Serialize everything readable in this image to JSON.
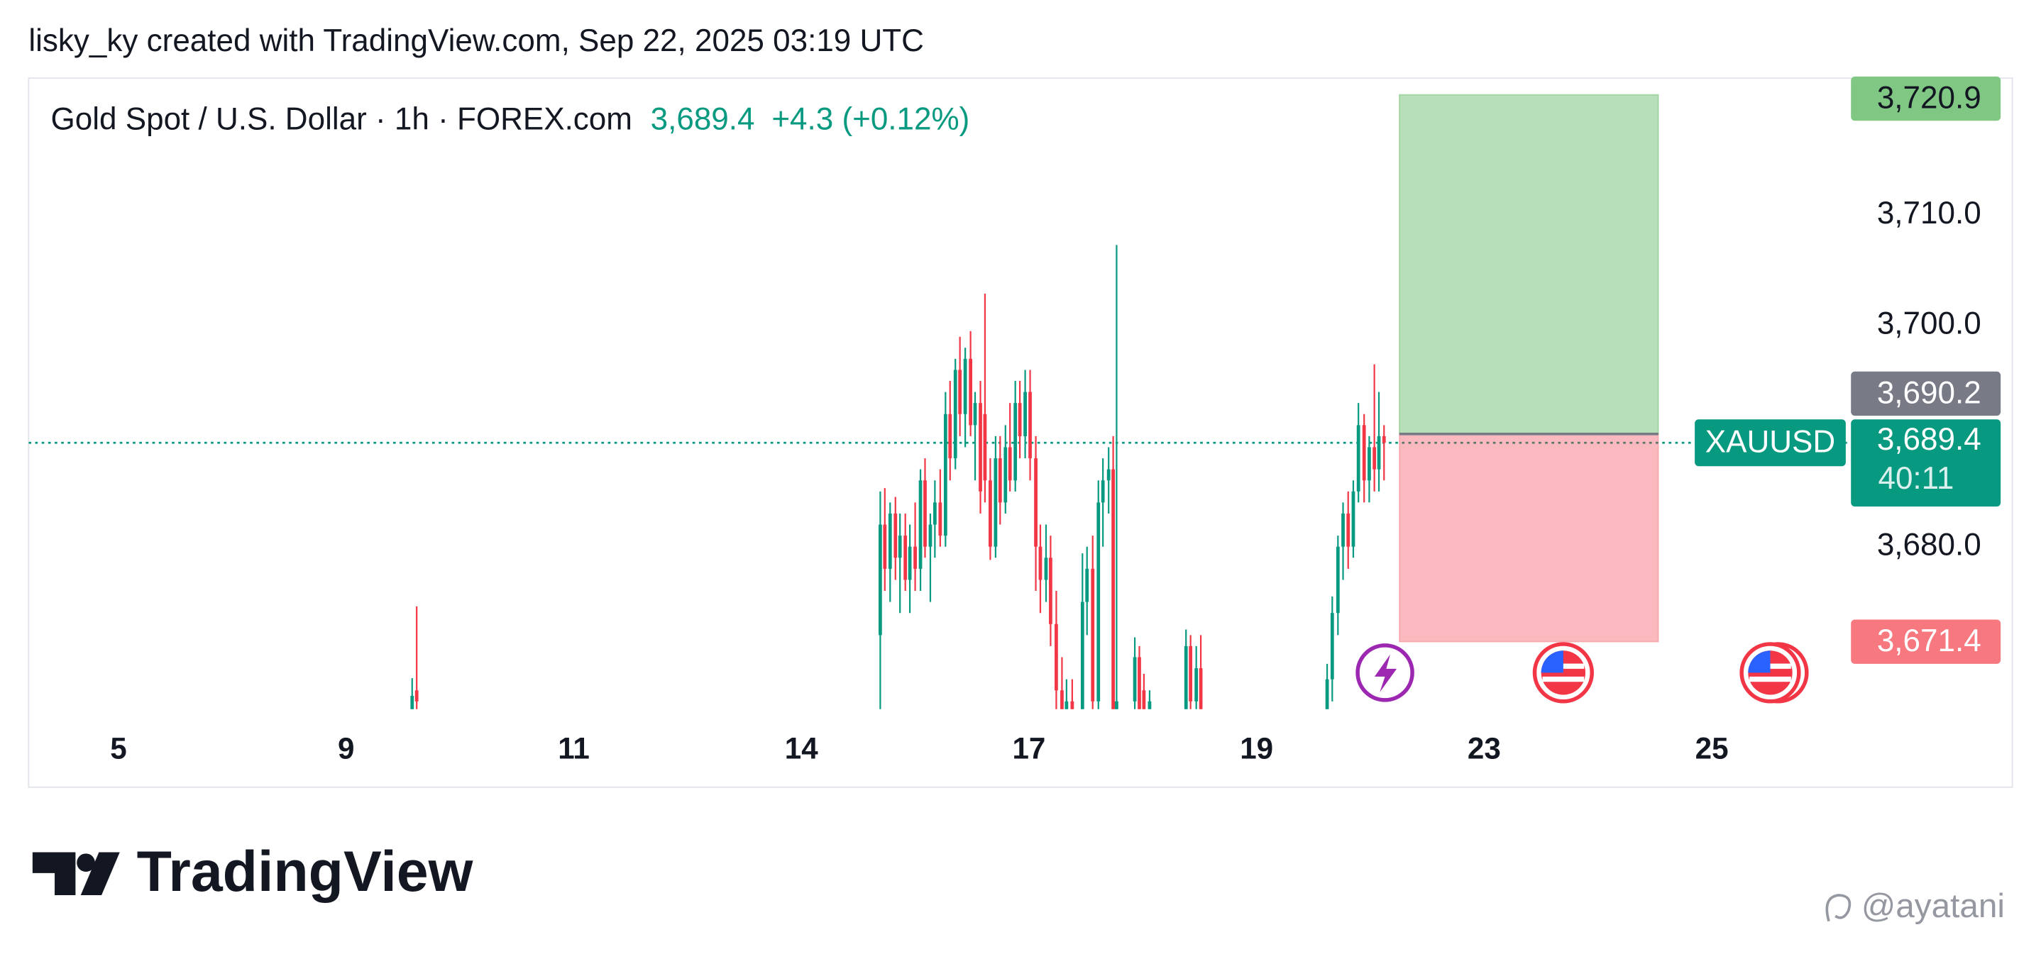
{
  "header": "lisky_ky created with TradingView.com, Sep 22, 2025 03:19 UTC",
  "chart_data": {
    "type": "candlestick",
    "title": "Gold Spot / U.S. Dollar · 1h · FOREX.com",
    "last_price": {
      "value": 3689.4,
      "label": "3,689.4"
    },
    "change": "+4.3 (+0.12%)",
    "symbol": "XAUUSD",
    "countdown": "40:11",
    "up_color": "#089981",
    "down_color": "#f23645",
    "x": [
      9.58,
      9.62,
      15.04,
      15.1,
      15.17,
      15.24,
      15.3,
      15.37,
      15.43,
      15.5,
      15.57,
      15.63,
      15.7,
      15.76,
      15.83,
      15.9,
      15.96,
      16.03,
      16.09,
      16.16,
      16.23,
      16.29,
      16.36,
      16.42,
      16.49,
      16.56,
      16.62,
      16.69,
      16.75,
      16.82,
      16.88,
      16.95,
      17.01,
      17.06,
      17.1,
      17.15,
      17.19,
      17.24,
      17.29,
      17.33,
      17.38,
      17.47,
      17.51,
      17.56,
      17.61,
      17.65,
      17.7,
      17.74,
      17.77,
      17.93,
      17.97,
      18.01,
      18.06,
      18.38,
      18.42,
      18.47,
      18.51,
      20.24,
      20.33,
      20.43,
      20.52,
      20.61,
      20.7,
      20.79,
      20.89,
      20.98,
      21.07,
      21.15,
      21.24
    ],
    "open": [
      3665,
      3667,
      3672,
      3682,
      3678,
      3683,
      3679,
      3681,
      3677,
      3680,
      3678,
      3686,
      3680,
      3682,
      3684,
      3681,
      3692,
      3688,
      3696,
      3692,
      3697,
      3691,
      3693,
      3692,
      3686,
      3680,
      3688,
      3684,
      3689,
      3686,
      3693,
      3690,
      3694,
      3688,
      3680,
      3677,
      3679,
      3673,
      3667,
      3665,
      3666,
      3665,
      3675,
      3678,
      3666,
      3684,
      3686,
      3687,
      3665,
      3666,
      3670,
      3667,
      3665,
      3665,
      3671,
      3666,
      3669,
      3664,
      3668,
      3674,
      3680,
      3683,
      3680,
      3685,
      3691,
      3686,
      3689,
      3687,
      3690
    ],
    "high": [
      3668.1,
      3674.6,
      3685,
      3685.3,
      3684,
      3684.5,
      3683,
      3683,
      3682,
      3684,
      3687,
      3688,
      3683,
      3686,
      3687,
      3694,
      3695,
      3697,
      3699,
      3698,
      3699.5,
      3694,
      3695,
      3702.9,
      3688,
      3690,
      3690,
      3691,
      3693,
      3695,
      3695,
      3696,
      3696,
      3690,
      3682,
      3682,
      3681,
      3676,
      3670,
      3668,
      3668,
      3679.4,
      3680,
      3681,
      3686,
      3688,
      3689,
      3690,
      3707.3,
      3671.8,
      3671,
      3668.5,
      3667,
      3672.5,
      3672,
      3671,
      3672,
      3669.4,
      3675.5,
      3681,
      3684,
      3685,
      3686,
      3693,
      3692,
      3690,
      3696.5,
      3694,
      3691
    ],
    "low": [
      3664,
      3664,
      3664,
      3676,
      3675,
      3677,
      3674,
      3676,
      3674,
      3676,
      3676,
      3679,
      3675,
      3679,
      3680,
      3680,
      3686,
      3687,
      3690,
      3689,
      3690,
      3686,
      3683,
      3684,
      3678.8,
      3679,
      3682,
      3683,
      3685,
      3685,
      3688,
      3688,
      3686,
      3676,
      3674,
      3675,
      3671,
      3665,
      3664,
      3664,
      3664,
      3664,
      3672,
      3664,
      3665,
      3680,
      3683,
      3664,
      3664,
      3664,
      3664,
      3664,
      3664,
      3664,
      3664,
      3664,
      3664,
      3664,
      3666,
      3672,
      3677,
      3678,
      3679,
      3684,
      3684,
      3684,
      3685,
      3685,
      3686
    ],
    "close": [
      3666.5,
      3666,
      3682,
      3678,
      3683,
      3679,
      3681,
      3677,
      3680,
      3678,
      3686,
      3680,
      3682,
      3684,
      3681,
      3692,
      3688,
      3696,
      3692,
      3697,
      3691,
      3693,
      3685,
      3686,
      3680,
      3688,
      3684,
      3689,
      3686,
      3693,
      3690,
      3694,
      3688,
      3680,
      3677,
      3679,
      3673,
      3667,
      3665,
      3666,
      3665,
      3675,
      3678,
      3666,
      3684,
      3686,
      3687,
      3665,
      3666,
      3670,
      3665,
      3665,
      3666,
      3671,
      3666,
      3669,
      3665,
      3668,
      3674,
      3680,
      3683,
      3680,
      3685,
      3691,
      3686,
      3689,
      3687,
      3690,
      3689.4
    ],
    "xlim": [
      3.42,
      26.2
    ],
    "xticks": [
      5,
      9,
      11,
      14,
      17,
      19,
      23,
      25
    ],
    "ylim": [
      3665.3,
      3722.4
    ],
    "yticks": [
      {
        "value": 3680,
        "label": "3,680.0"
      },
      {
        "value": 3700,
        "label": "3,700.0"
      },
      {
        "value": 3710,
        "label": "3,710.0"
      }
    ],
    "position": {
      "start": 21.51,
      "end": 24.53,
      "target": {
        "value": 3720.9,
        "label": "3,720.9"
      },
      "entry": {
        "value": 3690.2,
        "label": "3,690.2"
      },
      "stop": {
        "value": 3671.4,
        "label": "3,671.4"
      }
    }
  },
  "branding": "TradingView",
  "watermark": "@ayatani"
}
